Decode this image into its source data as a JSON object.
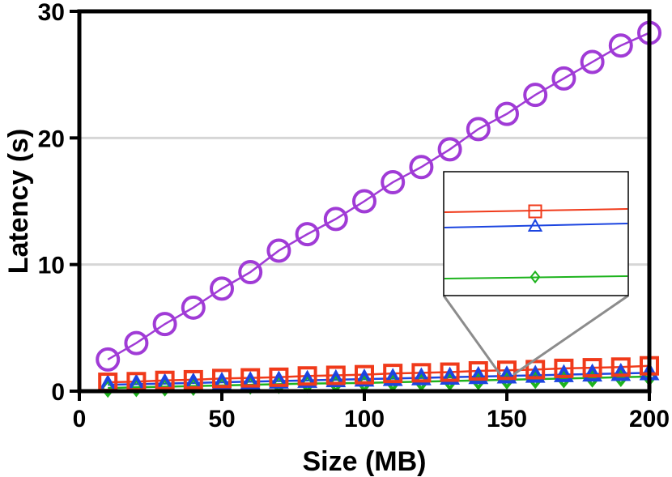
{
  "chart_data": {
    "type": "line",
    "title": "",
    "xlabel": "Size (MB)",
    "ylabel": "Latency (s)",
    "xlim": [
      0,
      200
    ],
    "ylim": [
      0,
      30
    ],
    "x_ticks": [
      "0",
      "50",
      "100",
      "150",
      "200"
    ],
    "y_ticks": [
      "0",
      "10",
      "20",
      "30"
    ],
    "grid": "horizontal",
    "x": [
      10,
      20,
      30,
      40,
      50,
      60,
      70,
      80,
      90,
      100,
      110,
      120,
      130,
      140,
      150,
      160,
      170,
      180,
      190,
      200
    ],
    "series": [
      {
        "color": "#A03BD6",
        "marker": "circle",
        "values": [
          2.5,
          3.8,
          5.3,
          6.6,
          8.1,
          9.4,
          11.1,
          12.4,
          13.6,
          15.0,
          16.5,
          17.7,
          19.1,
          20.7,
          21.9,
          23.4,
          24.7,
          26.0,
          27.3,
          28.3
        ]
      },
      {
        "color": "#F03A1A",
        "marker": "square",
        "values": [
          0.7,
          0.75,
          0.85,
          0.9,
          1.0,
          1.05,
          1.1,
          1.2,
          1.25,
          1.3,
          1.4,
          1.45,
          1.5,
          1.6,
          1.65,
          1.7,
          1.8,
          1.85,
          1.9,
          2.0
        ]
      },
      {
        "color": "#1C45E0",
        "marker": "triangle",
        "values": [
          0.5,
          0.55,
          0.6,
          0.65,
          0.7,
          0.75,
          0.8,
          0.85,
          0.9,
          0.95,
          1.0,
          1.05,
          1.1,
          1.15,
          1.2,
          1.25,
          1.3,
          1.35,
          1.4,
          1.45
        ]
      },
      {
        "color": "#1DB31D",
        "marker": "diamond",
        "values": [
          0.25,
          0.3,
          0.35,
          0.4,
          0.45,
          0.5,
          0.55,
          0.6,
          0.62,
          0.65,
          0.7,
          0.75,
          0.8,
          0.85,
          0.9,
          0.95,
          1.0,
          1.05,
          1.1,
          1.15
        ]
      }
    ],
    "inset": {
      "type": "zoom",
      "source_x": 150,
      "location": "right"
    }
  }
}
